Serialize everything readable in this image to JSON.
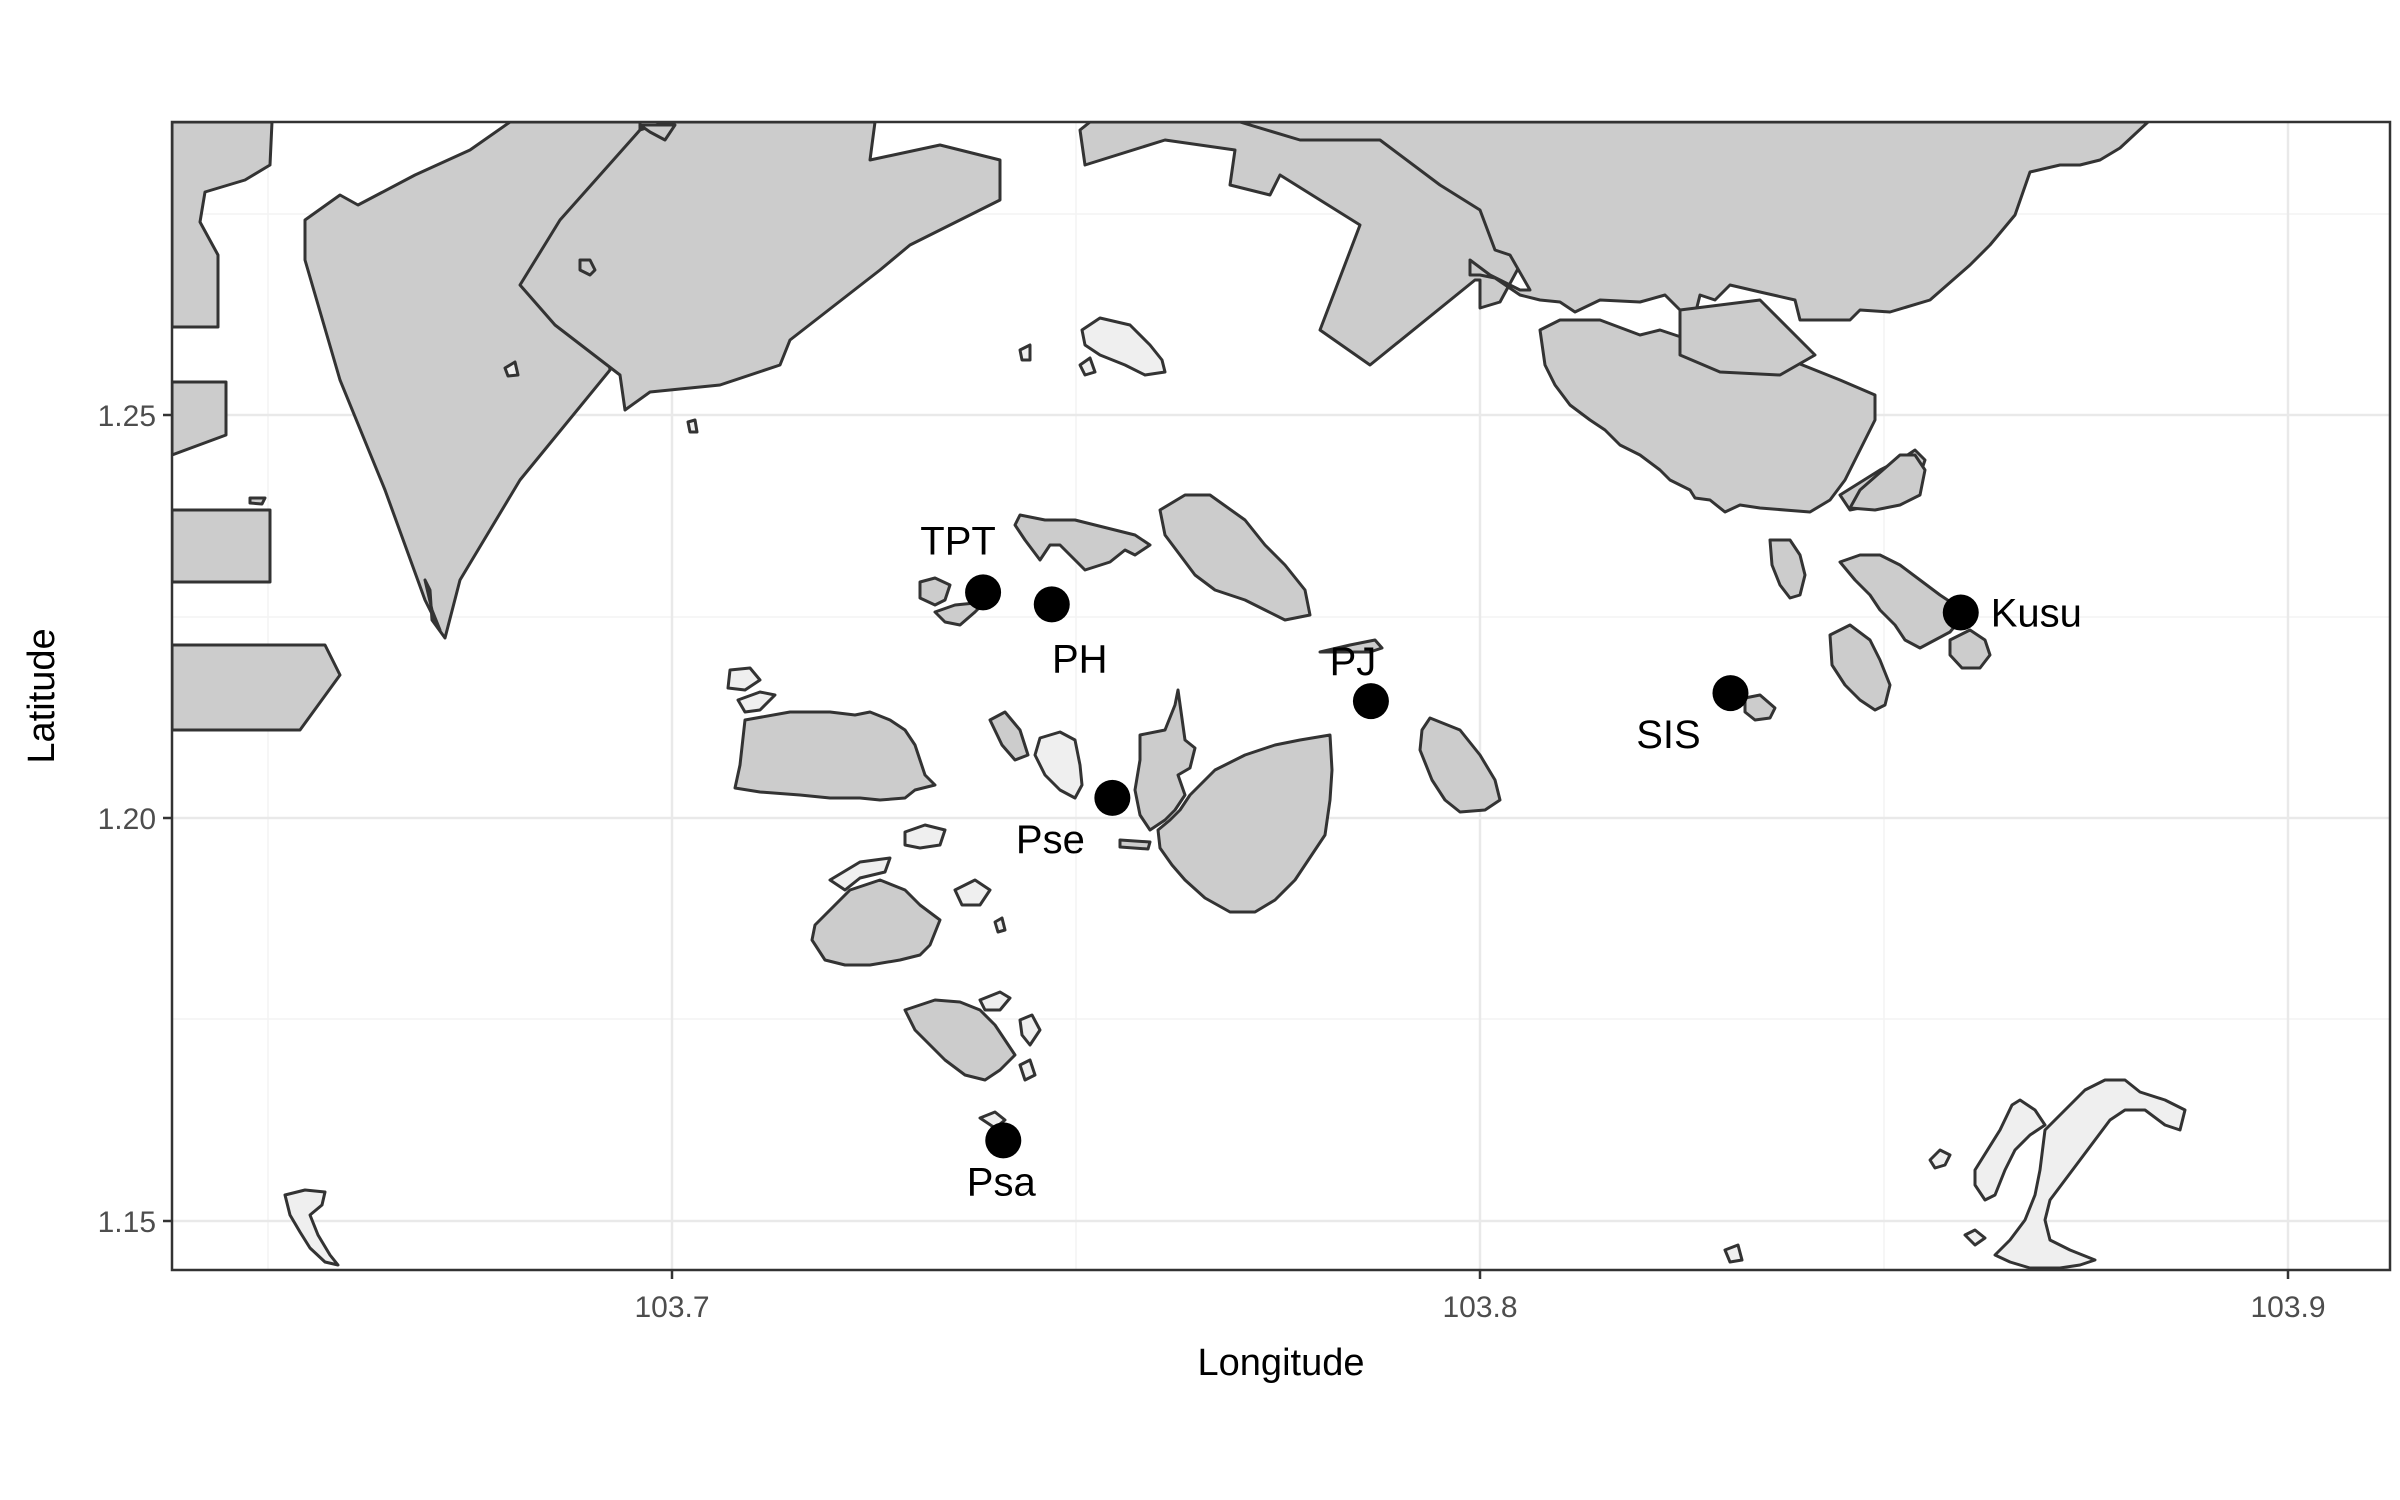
{
  "chart_data": {
    "type": "scatter",
    "xlabel": "Longitude",
    "ylabel": "Latitude",
    "xlim": [
      103.642,
      103.917
    ],
    "ylim": [
      1.144,
      1.286
    ],
    "x_ticks": [
      {
        "value": 103.7,
        "label": "103.7"
      },
      {
        "value": 103.8,
        "label": "103.8"
      },
      {
        "value": 103.9,
        "label": "103.9"
      }
    ],
    "y_ticks": [
      {
        "value": 1.15,
        "label": "1.15"
      },
      {
        "value": 1.2,
        "label": "1.20"
      },
      {
        "value": 1.25,
        "label": "1.25"
      }
    ],
    "grid": true,
    "background_land": "#cccccc",
    "points": [
      {
        "label": "TPT",
        "x": 103.7385,
        "y": 1.228,
        "label_pos": "above"
      },
      {
        "label": "PH",
        "x": 103.747,
        "y": 1.2265,
        "label_pos": "below"
      },
      {
        "label": "PJ",
        "x": 103.7865,
        "y": 1.2145,
        "label_pos": "above-left"
      },
      {
        "label": "Pse",
        "x": 103.7545,
        "y": 1.2025,
        "label_pos": "below-left"
      },
      {
        "label": "Psa",
        "x": 103.741,
        "y": 1.16,
        "label_pos": "below"
      },
      {
        "label": "SIS",
        "x": 103.831,
        "y": 1.2155,
        "label_pos": "below-left"
      },
      {
        "label": "Kusu",
        "x": 103.8595,
        "y": 1.2255,
        "label_pos": "right"
      }
    ]
  }
}
